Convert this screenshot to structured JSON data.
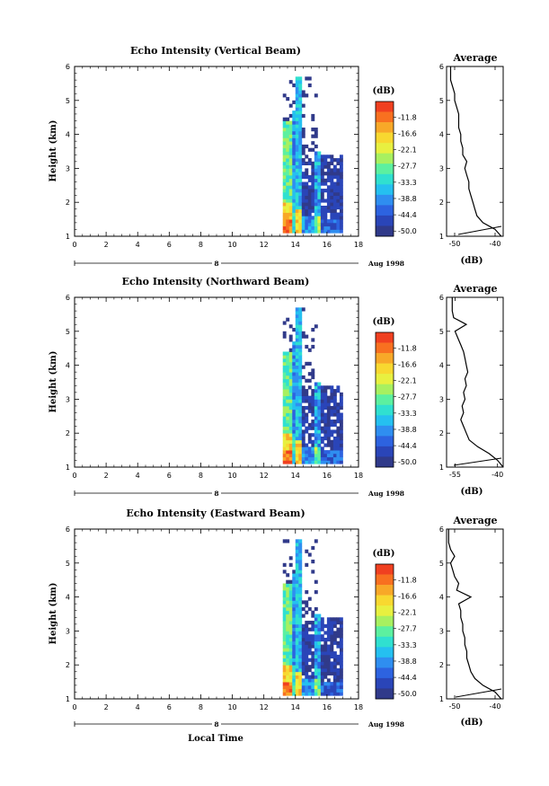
{
  "colorbar": {
    "unit": "(dB)",
    "ticks": [
      "-11.8",
      "-16.6",
      "-22.1",
      "-27.7",
      "-33.3",
      "-38.8",
      "-44.4",
      "-50.0"
    ],
    "colors": [
      "#303a8a",
      "#2a45b8",
      "#2d63e0",
      "#2f8ef0",
      "#25c0f0",
      "#30e0d0",
      "#5cf0a0",
      "#a8f060",
      "#e8f040",
      "#f8d830",
      "#f8a828",
      "#f87020",
      "#f04020"
    ]
  },
  "panels": [
    {
      "title": "Echo Intensity (Vertical Beam)",
      "ylabel": "Height (km)",
      "date_label": "Aug 1998",
      "day_label": "8",
      "profile_title": "Average",
      "profile_xlabel": "(dB)",
      "profile_xticks": [
        "-50",
        "-40"
      ],
      "chart_data": {
        "type": "heatmap",
        "x_range": [
          0,
          18
        ],
        "y_range": [
          1,
          6
        ],
        "xticks": [
          "0",
          "2",
          "4",
          "6",
          "8",
          "10",
          "12",
          "14",
          "16",
          "18"
        ],
        "yticks": [
          "1",
          "2",
          "3",
          "4",
          "5",
          "6"
        ],
        "profile": {
          "x_range": [
            -52,
            -38
          ],
          "heights": [
            1.0,
            1.2,
            1.4,
            1.6,
            1.8,
            2.0,
            2.2,
            2.4,
            2.6,
            2.8,
            3.0,
            3.2,
            3.4,
            3.6,
            3.8,
            4.0,
            4.2,
            4.4,
            4.6,
            4.8,
            5.0,
            5.2,
            5.4,
            5.6,
            5.8,
            6.0
          ],
          "values": [
            -38.5,
            -40,
            -43,
            -44.5,
            -45,
            -45.5,
            -46,
            -46.5,
            -46.5,
            -47,
            -47.5,
            -47,
            -48,
            -48,
            -48.5,
            -48.5,
            -49,
            -49,
            -49,
            -49.5,
            -50,
            -50,
            -50.5,
            -51,
            -51,
            -51
          ]
        }
      }
    },
    {
      "title": "Echo Intensity (Northward Beam)",
      "ylabel": "Height (km)",
      "date_label": "Aug 1998",
      "day_label": "8",
      "profile_title": "Average",
      "profile_xlabel": "(dB)",
      "profile_xticks": [
        "-55",
        "-40"
      ],
      "chart_data": {
        "type": "heatmap",
        "x_range": [
          0,
          18
        ],
        "y_range": [
          1,
          6
        ],
        "xticks": [
          "0",
          "2",
          "4",
          "6",
          "8",
          "10",
          "12",
          "14",
          "16",
          "18"
        ],
        "yticks": [
          "1",
          "2",
          "3",
          "4",
          "5",
          "6"
        ],
        "profile": {
          "x_range": [
            -58,
            -38
          ],
          "heights": [
            1.0,
            1.2,
            1.4,
            1.6,
            1.8,
            2.0,
            2.2,
            2.4,
            2.6,
            2.8,
            3.0,
            3.2,
            3.4,
            3.6,
            3.8,
            4.0,
            4.2,
            4.4,
            4.6,
            4.8,
            5.0,
            5.2,
            5.4,
            5.6,
            5.8,
            6.0
          ],
          "values": [
            -38,
            -40,
            -43,
            -47,
            -50,
            -51,
            -52,
            -53,
            -52,
            -52.5,
            -51.5,
            -52,
            -51,
            -51.5,
            -50.5,
            -51,
            -51.5,
            -52,
            -53,
            -54,
            -55,
            -51,
            -55.5,
            -56,
            -56,
            -56
          ]
        }
      }
    },
    {
      "title": "Echo Intensity (Eastward Beam)",
      "ylabel": "Height (km)",
      "date_label": "Aug 1998",
      "day_label": "8",
      "profile_title": "Average",
      "profile_xlabel": "(dB)",
      "profile_xticks": [
        "-50",
        "-40"
      ],
      "chart_data": {
        "type": "heatmap",
        "x_range": [
          0,
          18
        ],
        "y_range": [
          1,
          6
        ],
        "xticks": [
          "0",
          "2",
          "4",
          "6",
          "8",
          "10",
          "12",
          "14",
          "16",
          "18"
        ],
        "yticks": [
          "1",
          "2",
          "3",
          "4",
          "5",
          "6"
        ],
        "xlabel": "Local Time",
        "profile": {
          "x_range": [
            -52,
            -38
          ],
          "heights": [
            1.0,
            1.2,
            1.4,
            1.6,
            1.8,
            2.0,
            2.2,
            2.4,
            2.6,
            2.8,
            3.0,
            3.2,
            3.4,
            3.6,
            3.8,
            4.0,
            4.2,
            4.4,
            4.6,
            4.8,
            5.0,
            5.2,
            5.4,
            5.6,
            5.8,
            6.0
          ],
          "values": [
            -38.5,
            -40,
            -43,
            -45,
            -46,
            -46.5,
            -47,
            -47,
            -47.5,
            -47.5,
            -48,
            -48,
            -48.5,
            -48.5,
            -49,
            -46,
            -49.5,
            -49,
            -50,
            -50.5,
            -51,
            -50,
            -51,
            -51.5,
            -51.5,
            -51.5
          ]
        }
      }
    }
  ]
}
